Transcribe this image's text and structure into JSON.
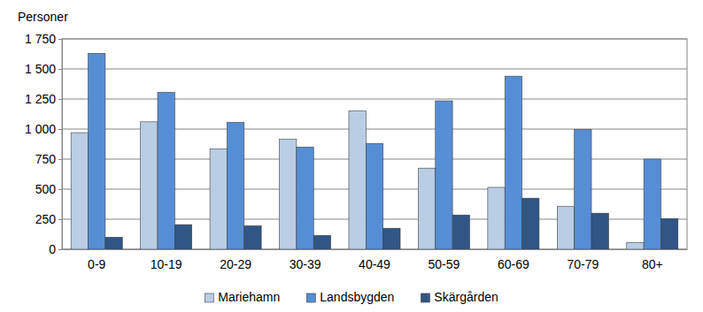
{
  "chart_data": {
    "type": "bar",
    "y_label": "Personer",
    "categories": [
      "0-9",
      "10-19",
      "20-29",
      "30-39",
      "40-49",
      "50-59",
      "60-69",
      "70-79",
      "80+"
    ],
    "series": [
      {
        "name": "Mariehamn",
        "color": "#b9cde5",
        "values": [
          970,
          1060,
          835,
          915,
          1150,
          675,
          515,
          355,
          55
        ]
      },
      {
        "name": "Landsbygden",
        "color": "#558ed5",
        "values": [
          1630,
          1305,
          1055,
          850,
          880,
          1235,
          1440,
          995,
          750
        ]
      },
      {
        "name": "Skärgården",
        "color": "#2f5685",
        "values": [
          100,
          205,
          195,
          115,
          175,
          285,
          425,
          300,
          255
        ]
      }
    ],
    "ylim": [
      0,
      1750
    ],
    "yticks": [
      0,
      250,
      500,
      750,
      {
        "value": 1000,
        "label": "1 000"
      },
      {
        "value": 1250,
        "label": "1 250"
      },
      {
        "value": 1500,
        "label": "1 500"
      },
      {
        "value": 1750,
        "label": "1 750"
      }
    ],
    "grid": true,
    "legend": "bottom"
  }
}
